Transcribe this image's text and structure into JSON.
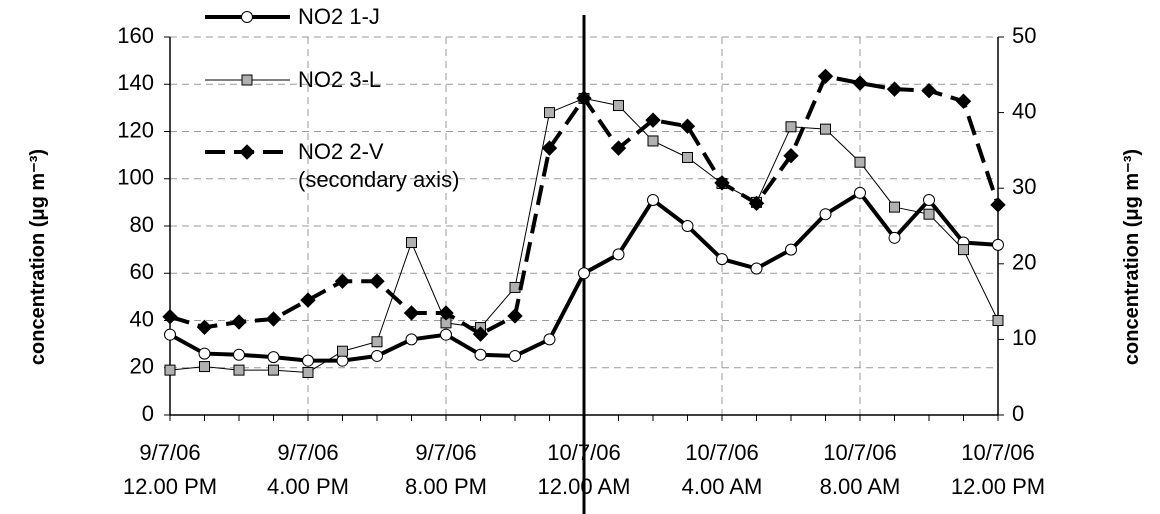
{
  "chart_data": {
    "type": "line",
    "ylabel": "concentration (μg m⁻³)",
    "y2label": "concentration (μg m⁻³)",
    "categories": [
      "9/7/06\n12.00 PM",
      null,
      null,
      null,
      "9/7/06\n4.00 PM",
      null,
      null,
      null,
      "9/7/06\n8.00 PM",
      null,
      null,
      null,
      "10/7/06\n12.00 AM",
      null,
      null,
      null,
      "10/7/06\n4.00 AM",
      null,
      null,
      null,
      "10/7/06\n8.00 AM",
      null,
      null,
      null,
      "10/7/06\n12.00 PM"
    ],
    "series": [
      {
        "name": "NO2 1-J",
        "color": "#000000",
        "marker": "circle",
        "marker_fill": "#ffffff",
        "values": [
          34,
          26,
          25.5,
          24.5,
          23,
          23,
          25,
          32,
          34,
          25.5,
          25,
          32,
          60,
          68,
          91,
          80,
          66,
          62,
          70,
          85,
          94,
          75,
          91,
          73,
          72
        ]
      },
      {
        "name": "NO2 3-L",
        "color": "#000000",
        "marker": "square",
        "marker_fill": "#b0b0b0",
        "values": [
          19,
          20.5,
          19,
          19,
          18,
          27,
          31,
          73,
          39,
          37,
          54,
          128,
          134,
          131,
          116,
          109,
          98,
          90,
          122,
          121,
          107,
          88,
          85,
          70,
          40
        ]
      },
      {
        "name": "NO2 2-V\n(secondary axis)",
        "color": "#000000",
        "marker": "diamond",
        "marker_fill": "#000000",
        "axis": "y2",
        "values": [
          13,
          11.6,
          12.3,
          12.7,
          15.2,
          17.7,
          17.7,
          13.5,
          13.5,
          10.7,
          13.1,
          35.3,
          41.9,
          35.3,
          39,
          38.2,
          30.7,
          28,
          34.3,
          44.8,
          43.9,
          43.1,
          42.9,
          41.5,
          27.8
        ]
      }
    ],
    "ylim": [
      0,
      160
    ],
    "yticks": [
      0,
      20,
      40,
      60,
      80,
      100,
      120,
      140,
      160
    ],
    "y2lim": [
      0,
      50
    ],
    "y2ticks": [
      0,
      10,
      20,
      30,
      40,
      50
    ],
    "grid": true,
    "marker_line_index": 12
  }
}
